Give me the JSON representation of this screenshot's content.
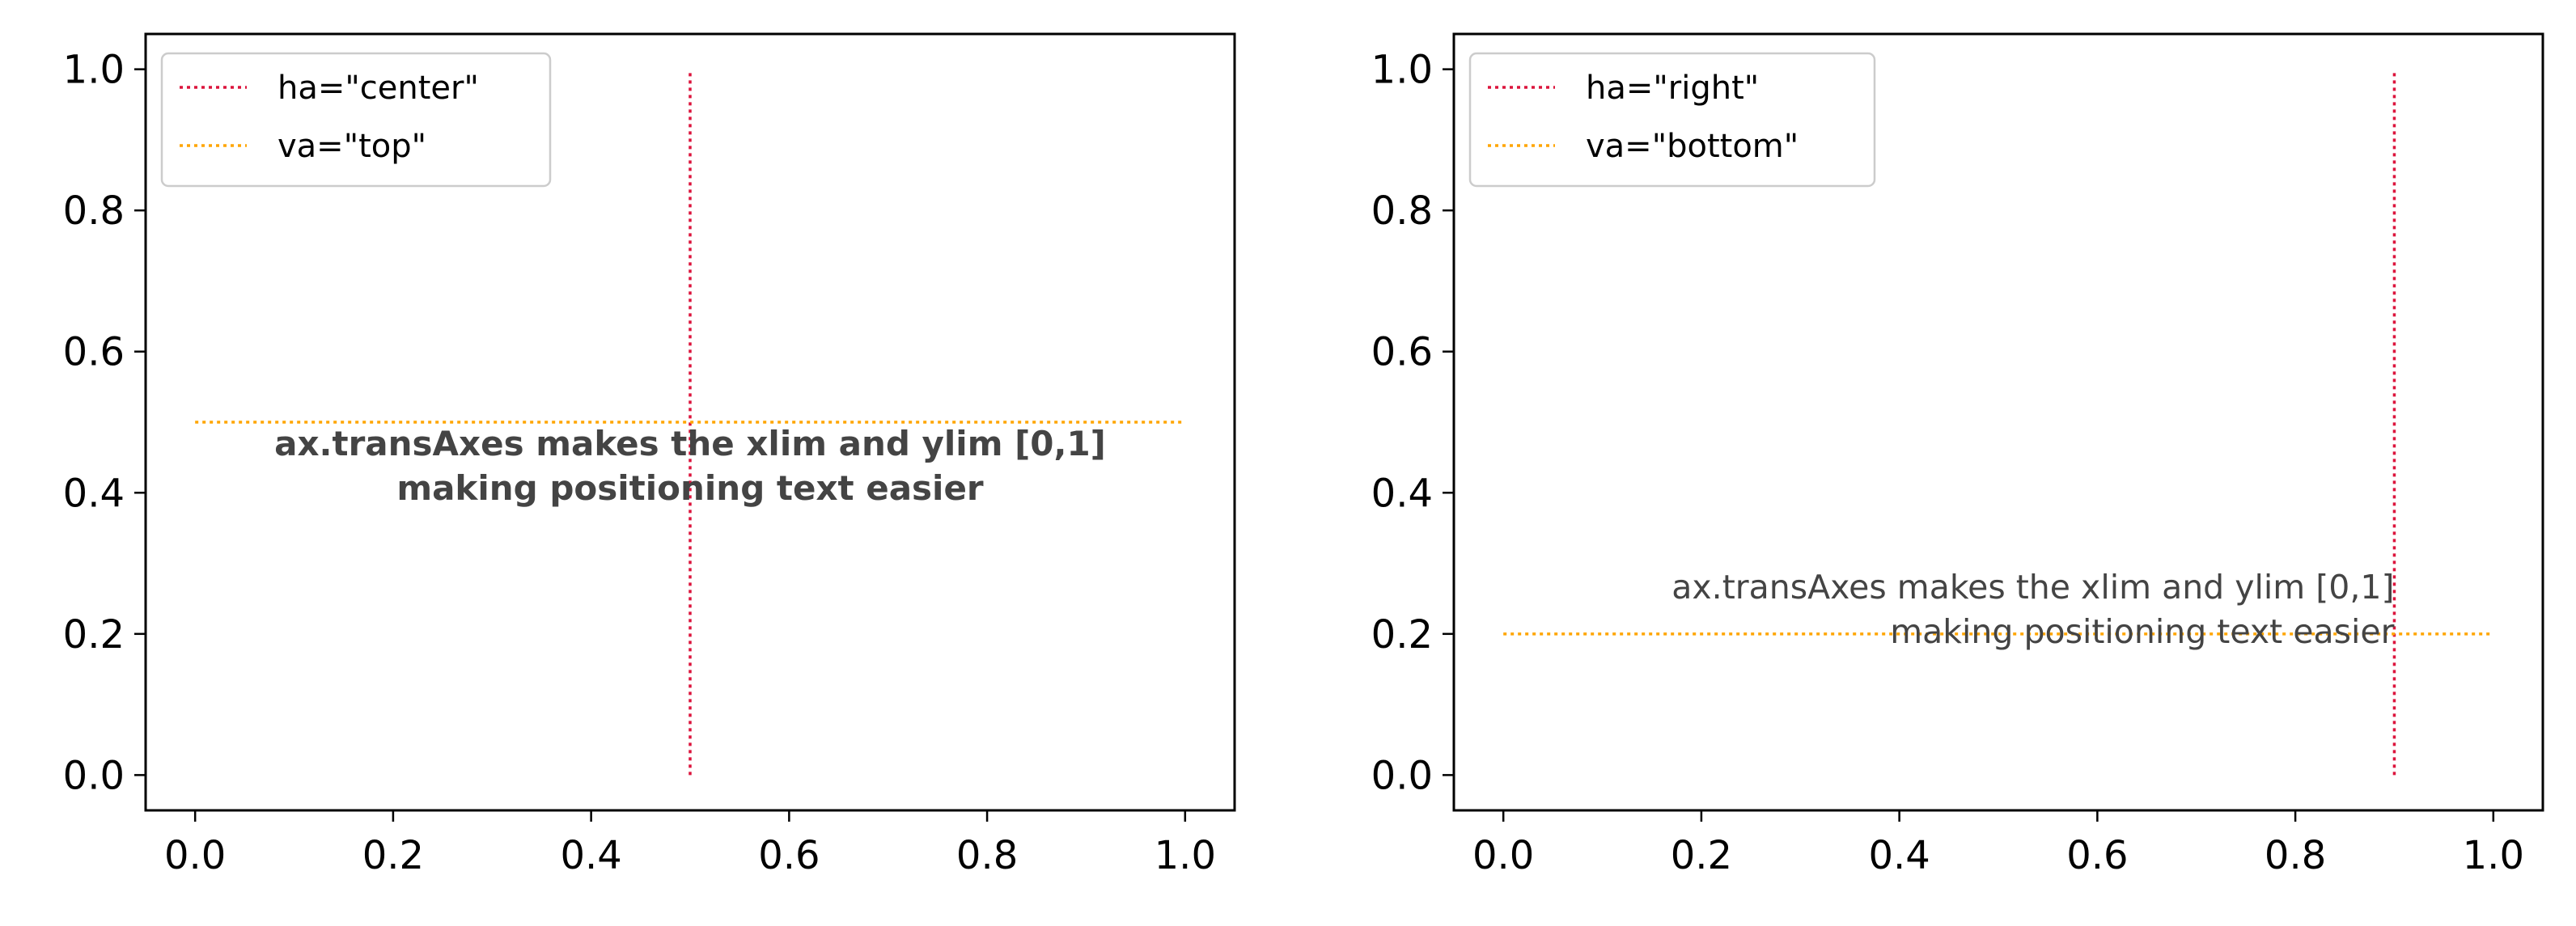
{
  "chart_data": [
    {
      "type": "line",
      "xlim": [
        -0.05,
        1.05
      ],
      "ylim": [
        -0.05,
        1.05
      ],
      "xticks": [
        0.0,
        0.2,
        0.4,
        0.6,
        0.8,
        1.0
      ],
      "yticks": [
        0.0,
        0.2,
        0.4,
        0.6,
        0.8,
        1.0
      ],
      "xtick_labels": [
        "0.0",
        "0.2",
        "0.4",
        "0.6",
        "0.8",
        "1.0"
      ],
      "ytick_labels": [
        "0.0",
        "0.2",
        "0.4",
        "0.6",
        "0.8",
        "1.0"
      ],
      "grid": false,
      "legend_position": "upper left",
      "series": [
        {
          "name": "ha=\"center\"",
          "color": "#dc143c",
          "style": "dotted",
          "x": [
            0.5,
            0.5
          ],
          "y": [
            0.0,
            1.0
          ]
        },
        {
          "name": "va=\"top\"",
          "color": "#ffa500",
          "style": "dotted",
          "x": [
            0.0,
            1.0
          ],
          "y": [
            0.5,
            0.5
          ]
        }
      ],
      "annotation": {
        "lines": [
          "ax.transAxes makes the xlim and ylim [0,1]",
          "making positioning text easier"
        ],
        "x": 0.5,
        "y": 0.5,
        "ha": "center",
        "va": "top",
        "weight": "bold",
        "color": "#444444"
      }
    },
    {
      "type": "line",
      "xlim": [
        -0.05,
        1.05
      ],
      "ylim": [
        -0.05,
        1.05
      ],
      "xticks": [
        0.0,
        0.2,
        0.4,
        0.6,
        0.8,
        1.0
      ],
      "yticks": [
        0.0,
        0.2,
        0.4,
        0.6,
        0.8,
        1.0
      ],
      "xtick_labels": [
        "0.0",
        "0.2",
        "0.4",
        "0.6",
        "0.8",
        "1.0"
      ],
      "ytick_labels": [
        "0.0",
        "0.2",
        "0.4",
        "0.6",
        "0.8",
        "1.0"
      ],
      "grid": false,
      "legend_position": "upper left",
      "series": [
        {
          "name": "ha=\"right\"",
          "color": "#dc143c",
          "style": "dotted",
          "x": [
            0.9,
            0.9
          ],
          "y": [
            0.0,
            1.0
          ]
        },
        {
          "name": "va=\"bottom\"",
          "color": "#ffa500",
          "style": "dotted",
          "x": [
            0.0,
            1.0
          ],
          "y": [
            0.2,
            0.2
          ]
        }
      ],
      "annotation": {
        "lines": [
          "ax.transAxes makes the xlim and ylim [0,1]",
          "making positioning text easier"
        ],
        "x": 0.9,
        "y": 0.2,
        "ha": "right",
        "va": "bottom",
        "weight": "normal",
        "color": "#444444"
      }
    }
  ]
}
